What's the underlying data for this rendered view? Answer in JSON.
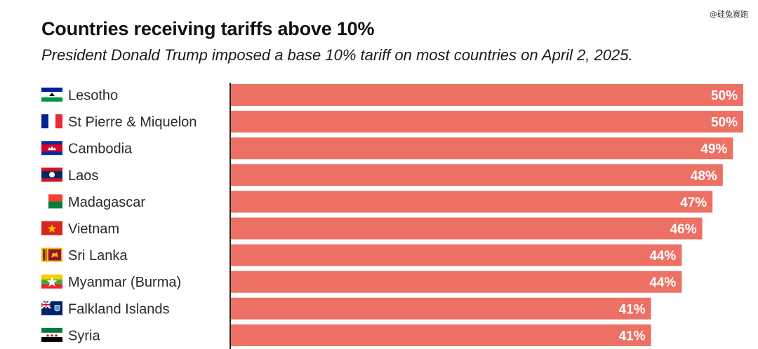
{
  "watermark": "@硅兔赛跑",
  "header": {
    "title": "Countries receiving tariffs above 10%",
    "subtitle": "President Donald Trump imposed a base 10% tariff on most countries on April 2, 2025."
  },
  "colors": {
    "bar": "#EC7063",
    "axis": "#222222",
    "value_text": "#ffffff"
  },
  "chart_data": {
    "type": "bar",
    "orientation": "horizontal",
    "title": "Countries receiving tariffs above 10%",
    "subtitle": "President Donald Trump imposed a base 10% tariff on most countries on April 2, 2025.",
    "categories": [
      "Lesotho",
      "St Pierre & Miquelon",
      "Cambodia",
      "Laos",
      "Madagascar",
      "Vietnam",
      "Sri Lanka",
      "Myanmar (Burma)",
      "Falkland Islands",
      "Syria"
    ],
    "values": [
      50,
      50,
      49,
      48,
      47,
      46,
      44,
      44,
      41,
      41
    ],
    "value_labels": [
      "50%",
      "50%",
      "49%",
      "48%",
      "47%",
      "46%",
      "44%",
      "44%",
      "41%",
      "41%"
    ],
    "flags": [
      "lesotho-flag-icon",
      "france-flag-icon",
      "cambodia-flag-icon",
      "laos-flag-icon",
      "madagascar-flag-icon",
      "vietnam-flag-icon",
      "sri-lanka-flag-icon",
      "myanmar-flag-icon",
      "falkland-islands-flag-icon",
      "syria-flag-icon"
    ],
    "xlim": [
      0,
      50
    ],
    "grid": false,
    "legend": "none"
  }
}
